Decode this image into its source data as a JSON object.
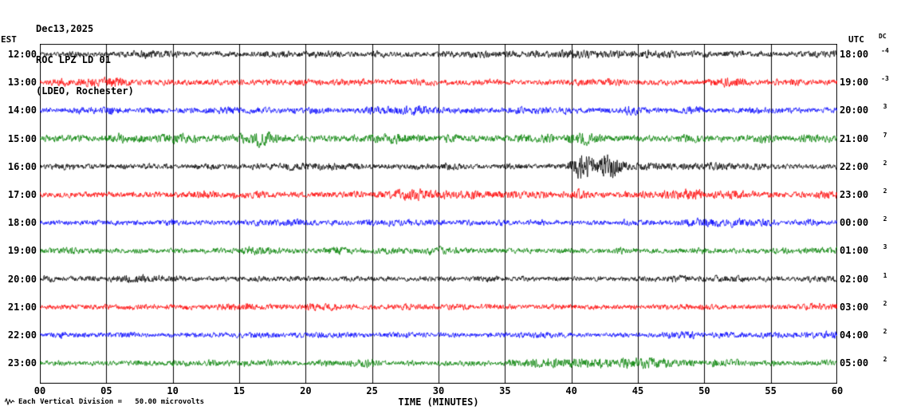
{
  "header": {
    "date": "Dec13,2025",
    "station": "ROC LPZ LD 01",
    "network": "(LDEO, Rochester)"
  },
  "axes": {
    "left_label": "EST",
    "right_label": "UTC",
    "dc_label": "DC",
    "x_title": "TIME (MINUTES)",
    "x_ticks": [
      "00",
      "05",
      "10",
      "15",
      "20",
      "25",
      "30",
      "35",
      "40",
      "45",
      "50",
      "55",
      "60"
    ],
    "footer_note": "Each Vertical Division =   50.00 microvolts"
  },
  "chart_data": {
    "type": "line",
    "title": "ROC LPZ LD 01 helicorder - 12 one-hour seismogram traces, Dec 13 2025",
    "x_label": "TIME (MINUTES)",
    "x_range": [
      0,
      60
    ],
    "x_tick_interval": 5,
    "grid": "vertical gridlines every 5 minutes, full plot height",
    "vertical_division_microvolts": 50.0,
    "trace_color_cycle": [
      "#000000",
      "#ff0000",
      "#0000ff",
      "#008000"
    ],
    "gridline_color": "#000000",
    "frame_color": "#000000",
    "rows": [
      {
        "est": "12:00",
        "utc": "18:00",
        "dc": "-4",
        "color": "#000000",
        "amp": 1.0,
        "bursts": []
      },
      {
        "est": "13:00",
        "utc": "19:00",
        "dc": "-3",
        "color": "#ff0000",
        "amp": 1.1,
        "bursts": [
          {
            "min": 5.8,
            "width": 0.5,
            "gain": 0.9
          }
        ]
      },
      {
        "est": "14:00",
        "utc": "20:00",
        "dc": "3",
        "color": "#0000ff",
        "amp": 1.0,
        "bursts": []
      },
      {
        "est": "15:00",
        "utc": "21:00",
        "dc": "7",
        "color": "#008000",
        "amp": 1.3,
        "bursts": [
          {
            "min": 17.0,
            "width": 0.7,
            "gain": 0.9
          },
          {
            "min": 40.8,
            "width": 0.8,
            "gain": 1.1
          }
        ]
      },
      {
        "est": "16:00",
        "utc": "22:00",
        "dc": "2",
        "color": "#000000",
        "amp": 1.0,
        "bursts": [
          {
            "min": 40.7,
            "width": 0.55,
            "gain": 2.6
          },
          {
            "min": 42.6,
            "width": 1.1,
            "gain": 1.7
          }
        ]
      },
      {
        "est": "17:00",
        "utc": "23:00",
        "dc": "2",
        "color": "#ff0000",
        "amp": 1.1,
        "bursts": [
          {
            "min": 40.5,
            "width": 0.6,
            "gain": 0.8
          }
        ]
      },
      {
        "est": "18:00",
        "utc": "00:00",
        "dc": "2",
        "color": "#0000ff",
        "amp": 0.95,
        "bursts": []
      },
      {
        "est": "19:00",
        "utc": "01:00",
        "dc": "3",
        "color": "#008000",
        "amp": 1.0,
        "bursts": []
      },
      {
        "est": "20:00",
        "utc": "02:00",
        "dc": "1",
        "color": "#000000",
        "amp": 0.9,
        "bursts": []
      },
      {
        "est": "21:00",
        "utc": "03:00",
        "dc": "2",
        "color": "#ff0000",
        "amp": 0.95,
        "bursts": []
      },
      {
        "est": "22:00",
        "utc": "04:00",
        "dc": "2",
        "color": "#0000ff",
        "amp": 0.9,
        "bursts": []
      },
      {
        "est": "23:00",
        "utc": "05:00",
        "dc": "2",
        "color": "#008000",
        "amp": 1.0,
        "bursts": []
      }
    ],
    "event_annotation": "burst of higher-amplitude oscillation on the 16:00 EST (22:00 UTC) black trace near minutes 40-44"
  }
}
